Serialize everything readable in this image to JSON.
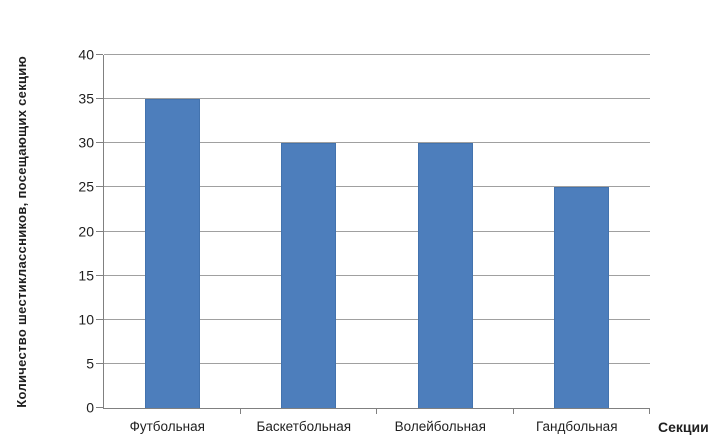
{
  "chart_data": {
    "type": "bar",
    "title": "",
    "categories": [
      "Футбольная",
      "Баскетбольная",
      "Волейбольная",
      "Гандбольная"
    ],
    "values": [
      35,
      30,
      30,
      25
    ],
    "xlabel": "Секции",
    "ylabel": "Количество шестиклассников, посещающих секцию",
    "ylim": [
      0,
      40
    ],
    "yticks": [
      0,
      5,
      10,
      15,
      20,
      25,
      30,
      35,
      40
    ],
    "grid": true,
    "legend": false,
    "bar_color": "#4D7EBC",
    "bar_border_color": "#4373AE",
    "gridline_color": "#a0a0a0",
    "axis_color": "#808080",
    "text_color": "#1f1f1f",
    "background": "#ffffff"
  }
}
